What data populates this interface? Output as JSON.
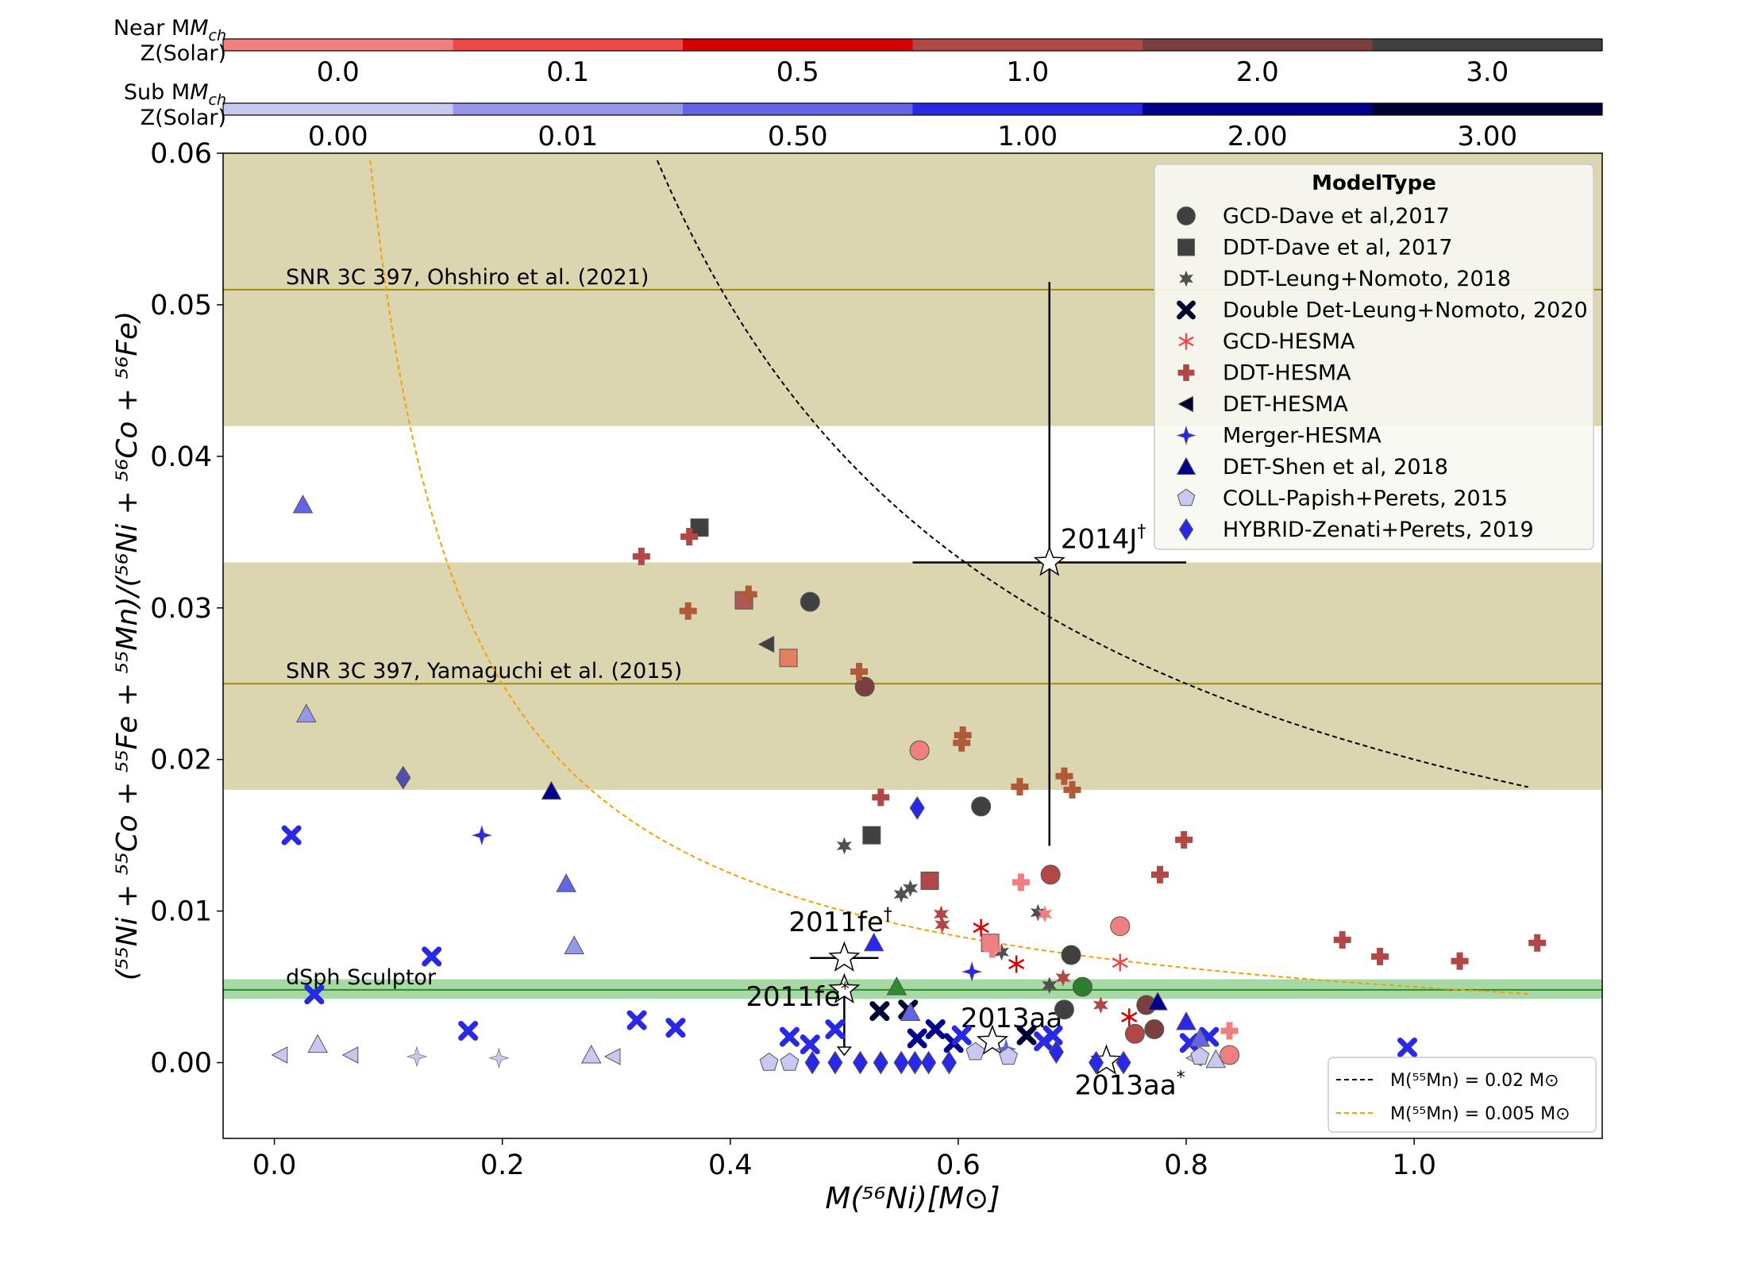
{
  "chart_data": {
    "type": "scatter",
    "xlabel": "M(⁵⁶Ni)[M⊙]",
    "ylabel": "(⁵⁵Ni + ⁵⁵Co + ⁵⁵Fe + ⁵⁵Mn)/(⁵⁶Ni + ⁵⁶Co + ⁵⁶Fe)",
    "xlim": [
      -0.045,
      1.165
    ],
    "ylim": [
      -0.005,
      0.06
    ],
    "xticks": [
      "0.0",
      "0.2",
      "0.4",
      "0.6",
      "0.8",
      "1.0"
    ],
    "xtick_values": [
      0.0,
      0.2,
      0.4,
      0.6,
      0.8,
      1.0
    ],
    "yticks": [
      "0.00",
      "0.01",
      "0.02",
      "0.03",
      "0.04",
      "0.05",
      "0.06"
    ],
    "ytick_values": [
      0.0,
      0.01,
      0.02,
      0.03,
      0.04,
      0.05,
      0.06
    ],
    "colorbars": [
      {
        "title_line1": "Near M",
        "title_sub": "ch",
        "title_line2": "Z(Solar)",
        "labels": [
          "0.0",
          "0.1",
          "0.5",
          "1.0",
          "2.0",
          "3.0"
        ],
        "colors": [
          "#f08080",
          "#ef4848",
          "#d70000",
          "#b04848",
          "#7a4040",
          "#404040"
        ]
      },
      {
        "title_line1": "Sub M",
        "title_sub": "ch",
        "title_line2": "Z(Solar)",
        "labels": [
          "0.00",
          "0.01",
          "0.50",
          "1.00",
          "2.00",
          "3.00"
        ],
        "colors": [
          "#c8c8f0",
          "#9696ea",
          "#6464e6",
          "#2828e6",
          "#00008c",
          "#000032"
        ]
      }
    ],
    "bands": [
      {
        "y0": 0.042,
        "y1": 0.06,
        "line": 0.051,
        "label": "SNR 3C 397, Ohshiro et al. (2021)",
        "color": "#dcd6b0",
        "line_color": "#a08a10"
      },
      {
        "y0": 0.018,
        "y1": 0.033,
        "line": 0.025,
        "label": "SNR 3C 397, Yamaguchi et al. (2015)",
        "color": "#dcd6b0",
        "line_color": "#a08a10"
      },
      {
        "y0": 0.0042,
        "y1": 0.0055,
        "line": 0.0048,
        "label": "dSph Sculptor",
        "color": "#a6d9a6",
        "line_color": "#2e8b2e"
      }
    ],
    "curves": [
      {
        "name": "M(⁵⁵Mn) = 0.02 M⊙",
        "mn": 0.02,
        "x_from": 0.336,
        "x_to": 1.1,
        "color": "#000000"
      },
      {
        "name": "M(⁵⁵Mn) = 0.005 M⊙",
        "mn": 0.005,
        "x_from": 0.084,
        "x_to": 1.1,
        "color": "#f5a000"
      }
    ],
    "legend_title": "ModelType",
    "legend": [
      {
        "label": "GCD-Dave et al,2017",
        "marker": "circle"
      },
      {
        "label": "DDT-Dave et al, 2017",
        "marker": "square"
      },
      {
        "label": "DDT-Leung+Nomoto, 2018",
        "marker": "star6"
      },
      {
        "label": "Double Det-Leung+Nomoto, 2020",
        "marker": "xthick"
      },
      {
        "label": "GCD-HESMA",
        "marker": "asterisk"
      },
      {
        "label": "DDT-HESMA",
        "marker": "plus"
      },
      {
        "label": "DET-HESMA",
        "marker": "triangle-left"
      },
      {
        "label": "Merger-HESMA",
        "marker": "star4"
      },
      {
        "label": "DET-Shen et al, 2018",
        "marker": "triangle"
      },
      {
        "label": "COLL-Papish+Perets, 2015",
        "marker": "pentagon"
      },
      {
        "label": "HYBRID-Zenati+Perets, 2019",
        "marker": "diamond"
      }
    ],
    "curve_legend": [
      "M(⁵⁵Mn) = 0.02 M⊙",
      "M(⁵⁵Mn) = 0.005 M⊙"
    ],
    "observations": [
      {
        "label": "2014J",
        "sup": "†",
        "x": 0.68,
        "y": 0.033,
        "xerr": 0.12,
        "yerr": [
          0.0187,
          0.0185
        ]
      },
      {
        "label": "2011fe",
        "sup": "†",
        "x": 0.5,
        "y": 0.0069,
        "xerr": 0.03,
        "yerr": [
          0,
          0
        ]
      },
      {
        "label": "2011fe",
        "sup": "*",
        "x": 0.5,
        "y": 0.0048,
        "xerr": 0,
        "yerr": [
          0.0043,
          0
        ],
        "arrow": "down"
      },
      {
        "label": "2013aa",
        "sup": "†",
        "x": 0.63,
        "y": 0.0014,
        "xerr": 0,
        "yerr": [
          0,
          0
        ]
      },
      {
        "label": "2013aa",
        "sup": "*",
        "x": 0.73,
        "y": 0.0001,
        "xerr": 0,
        "yerr": [
          0,
          0
        ]
      }
    ],
    "points": [
      {
        "m": "circle",
        "c": "#404040",
        "x": 0.47,
        "y": 0.0304
      },
      {
        "m": "circle",
        "c": "#7a4040",
        "x": 0.518,
        "y": 0.0248
      },
      {
        "m": "circle",
        "c": "#f08080",
        "x": 0.566,
        "y": 0.0206
      },
      {
        "m": "circle",
        "c": "#404040",
        "x": 0.62,
        "y": 0.0169
      },
      {
        "m": "circle",
        "c": "#b04848",
        "x": 0.681,
        "y": 0.0124
      },
      {
        "m": "circle",
        "c": "#f08080",
        "x": 0.742,
        "y": 0.009
      },
      {
        "m": "circle",
        "c": "#404040",
        "x": 0.699,
        "y": 0.0071
      },
      {
        "m": "circle",
        "c": "#2e7d2e",
        "x": 0.709,
        "y": 0.005
      },
      {
        "m": "circle",
        "c": "#404040",
        "x": 0.693,
        "y": 0.0035
      },
      {
        "m": "circle",
        "c": "#7a4040",
        "x": 0.765,
        "y": 0.0038
      },
      {
        "m": "circle",
        "c": "#7a4040",
        "x": 0.772,
        "y": 0.0022
      },
      {
        "m": "circle",
        "c": "#b04848",
        "x": 0.755,
        "y": 0.0019
      },
      {
        "m": "circle",
        "c": "#f08080",
        "x": 0.838,
        "y": 0.0005
      },
      {
        "m": "square",
        "c": "#404040",
        "x": 0.373,
        "y": 0.0353
      },
      {
        "m": "square",
        "c": "#b05858",
        "x": 0.412,
        "y": 0.0305
      },
      {
        "m": "square",
        "c": "#e08060",
        "x": 0.451,
        "y": 0.0267
      },
      {
        "m": "square",
        "c": "#404040",
        "x": 0.524,
        "y": 0.015
      },
      {
        "m": "square",
        "c": "#b04848",
        "x": 0.575,
        "y": 0.012
      },
      {
        "m": "square",
        "c": "#f08080",
        "x": 0.628,
        "y": 0.0079
      },
      {
        "m": "star6",
        "c": "#505050",
        "x": 0.5,
        "y": 0.0143
      },
      {
        "m": "star6",
        "c": "#505050",
        "x": 0.55,
        "y": 0.0111
      },
      {
        "m": "star6",
        "c": "#505050",
        "x": 0.558,
        "y": 0.0115
      },
      {
        "m": "star6",
        "c": "#b04848",
        "x": 0.585,
        "y": 0.0098
      },
      {
        "m": "star6",
        "c": "#b04848",
        "x": 0.586,
        "y": 0.0091
      },
      {
        "m": "star6",
        "c": "#505050",
        "x": 0.638,
        "y": 0.0073
      },
      {
        "m": "star6",
        "c": "#505050",
        "x": 0.67,
        "y": 0.0099
      },
      {
        "m": "star6",
        "c": "#505050",
        "x": 0.68,
        "y": 0.0051
      },
      {
        "m": "star6",
        "c": "#b04848",
        "x": 0.692,
        "y": 0.0056
      },
      {
        "m": "star6",
        "c": "#f08080",
        "x": 0.676,
        "y": 0.0098
      },
      {
        "m": "star6",
        "c": "#b04848",
        "x": 0.725,
        "y": 0.0038
      },
      {
        "m": "xthick",
        "c": "#2828e6",
        "x": 0.015,
        "y": 0.015
      },
      {
        "m": "xthick",
        "c": "#2828e6",
        "x": 0.035,
        "y": 0.0045
      },
      {
        "m": "xthick",
        "c": "#2828e6",
        "x": 0.138,
        "y": 0.007
      },
      {
        "m": "xthick",
        "c": "#2828e6",
        "x": 0.17,
        "y": 0.0021
      },
      {
        "m": "xthick",
        "c": "#2828e6",
        "x": 0.318,
        "y": 0.0028
      },
      {
        "m": "xthick",
        "c": "#2828e6",
        "x": 0.352,
        "y": 0.0023
      },
      {
        "m": "xthick",
        "c": "#2828e6",
        "x": 0.452,
        "y": 0.0017
      },
      {
        "m": "xthick",
        "c": "#2828e6",
        "x": 0.47,
        "y": 0.0012
      },
      {
        "m": "xthick",
        "c": "#2828e6",
        "x": 0.492,
        "y": 0.0022
      },
      {
        "m": "xthick",
        "c": "#000032",
        "x": 0.531,
        "y": 0.0034
      },
      {
        "m": "xthick",
        "c": "#000032",
        "x": 0.556,
        "y": 0.0035
      },
      {
        "m": "xthick",
        "c": "#00008c",
        "x": 0.564,
        "y": 0.0016
      },
      {
        "m": "xthick",
        "c": "#00008c",
        "x": 0.58,
        "y": 0.0022
      },
      {
        "m": "xthick",
        "c": "#00008c",
        "x": 0.596,
        "y": 0.0013
      },
      {
        "m": "xthick",
        "c": "#2828e6",
        "x": 0.603,
        "y": 0.0018
      },
      {
        "m": "xthick",
        "c": "#000032",
        "x": 0.66,
        "y": 0.0018
      },
      {
        "m": "xthick",
        "c": "#2828e6",
        "x": 0.675,
        "y": 0.0014
      },
      {
        "m": "xthick",
        "c": "#2828e6",
        "x": 0.683,
        "y": 0.0018
      },
      {
        "m": "xthick",
        "c": "#2828e6",
        "x": 0.803,
        "y": 0.0013
      },
      {
        "m": "xthick",
        "c": "#2828e6",
        "x": 0.82,
        "y": 0.0017
      },
      {
        "m": "xthick",
        "c": "#2828e6",
        "x": 0.994,
        "y": 0.001
      },
      {
        "m": "asterisk",
        "c": "#d70000",
        "x": 0.62,
        "y": 0.0089
      },
      {
        "m": "asterisk",
        "c": "#d70000",
        "x": 0.651,
        "y": 0.0065
      },
      {
        "m": "asterisk",
        "c": "#ef4848",
        "x": 0.742,
        "y": 0.0066
      },
      {
        "m": "asterisk",
        "c": "#d70000",
        "x": 0.75,
        "y": 0.003
      },
      {
        "m": "plus",
        "c": "#b04848",
        "x": 0.322,
        "y": 0.0334
      },
      {
        "m": "plus",
        "c": "#b04848",
        "x": 0.364,
        "y": 0.0347
      },
      {
        "m": "plus",
        "c": "#b05a3a",
        "x": 0.363,
        "y": 0.0298
      },
      {
        "m": "plus",
        "c": "#b05a3a",
        "x": 0.416,
        "y": 0.0309
      },
      {
        "m": "plus",
        "c": "#b05a3a",
        "x": 0.513,
        "y": 0.0258
      },
      {
        "m": "plus",
        "c": "#b05a3a",
        "x": 0.604,
        "y": 0.0216
      },
      {
        "m": "plus",
        "c": "#b05a3a",
        "x": 0.603,
        "y": 0.0211
      },
      {
        "m": "plus",
        "c": "#b04848",
        "x": 0.532,
        "y": 0.0175
      },
      {
        "m": "plus",
        "c": "#b05a3a",
        "x": 0.654,
        "y": 0.0182
      },
      {
        "m": "plus",
        "c": "#b05a3a",
        "x": 0.693,
        "y": 0.0189
      },
      {
        "m": "plus",
        "c": "#b05a3a",
        "x": 0.7,
        "y": 0.018
      },
      {
        "m": "plus",
        "c": "#b04848",
        "x": 0.798,
        "y": 0.0147
      },
      {
        "m": "plus",
        "c": "#b04848",
        "x": 0.777,
        "y": 0.0124
      },
      {
        "m": "plus",
        "c": "#f08080",
        "x": 0.655,
        "y": 0.0119
      },
      {
        "m": "plus",
        "c": "#f08080",
        "x": 0.63,
        "y": 0.0075
      },
      {
        "m": "plus",
        "c": "#b04848",
        "x": 0.937,
        "y": 0.0081
      },
      {
        "m": "plus",
        "c": "#b04848",
        "x": 0.97,
        "y": 0.007
      },
      {
        "m": "plus",
        "c": "#b04848",
        "x": 1.04,
        "y": 0.0067
      },
      {
        "m": "plus",
        "c": "#b04848",
        "x": 1.108,
        "y": 0.0079
      },
      {
        "m": "plus",
        "c": "#f08080",
        "x": 0.838,
        "y": 0.0021
      },
      {
        "m": "triangle-left",
        "c": "#404040",
        "x": 0.432,
        "y": 0.0276
      },
      {
        "m": "triangle-left",
        "c": "#c8c8f0",
        "x": 0.005,
        "y": 0.0005
      },
      {
        "m": "triangle-left",
        "c": "#c8c8f0",
        "x": 0.067,
        "y": 0.0005
      },
      {
        "m": "triangle-left",
        "c": "#c8c8f0",
        "x": 0.297,
        "y": 0.0004
      },
      {
        "m": "triangle-left",
        "c": "#c8c8f0",
        "x": 0.807,
        "y": 0.0003
      },
      {
        "m": "star4",
        "c": "#2828e6",
        "x": 0.182,
        "y": 0.015
      },
      {
        "m": "star4",
        "c": "#c8c8f0",
        "x": 0.125,
        "y": 0.0004
      },
      {
        "m": "star4",
        "c": "#c8c8f0",
        "x": 0.197,
        "y": 0.0003
      },
      {
        "m": "star4",
        "c": "#2828e6",
        "x": 0.612,
        "y": 0.006
      },
      {
        "m": "star4",
        "c": "#6464e6",
        "x": 0.642,
        "y": 0.0009
      },
      {
        "m": "triangle",
        "c": "#6464e6",
        "x": 0.025,
        "y": 0.0368
      },
      {
        "m": "triangle",
        "c": "#9696ea",
        "x": 0.028,
        "y": 0.023
      },
      {
        "m": "triangle",
        "c": "#00008c",
        "x": 0.243,
        "y": 0.0179
      },
      {
        "m": "triangle",
        "c": "#6464e6",
        "x": 0.256,
        "y": 0.0118
      },
      {
        "m": "triangle",
        "c": "#9696ea",
        "x": 0.263,
        "y": 0.0077
      },
      {
        "m": "triangle",
        "c": "#2828e6",
        "x": 0.526,
        "y": 0.0079
      },
      {
        "m": "triangle",
        "c": "#2e8b2e",
        "x": 0.546,
        "y": 0.005
      },
      {
        "m": "triangle",
        "c": "#6464e6",
        "x": 0.558,
        "y": 0.0033
      },
      {
        "m": "triangle",
        "c": "#00008c",
        "x": 0.775,
        "y": 0.004
      },
      {
        "m": "triangle",
        "c": "#2828e6",
        "x": 0.8,
        "y": 0.0027
      },
      {
        "m": "triangle",
        "c": "#6464e6",
        "x": 0.812,
        "y": 0.0016
      },
      {
        "m": "triangle",
        "c": "#c8c8f0",
        "x": 0.038,
        "y": 0.0012
      },
      {
        "m": "triangle",
        "c": "#c8c8f0",
        "x": 0.278,
        "y": 0.0005
      },
      {
        "m": "triangle",
        "c": "#c8c8f0",
        "x": 0.826,
        "y": 0.0002
      },
      {
        "m": "pentagon",
        "c": "#c8c8f0",
        "x": 0.434,
        "y": 0.0
      },
      {
        "m": "pentagon",
        "c": "#c8c8f0",
        "x": 0.452,
        "y": 0.0
      },
      {
        "m": "pentagon",
        "c": "#c8c8f0",
        "x": 0.615,
        "y": 0.0007
      },
      {
        "m": "pentagon",
        "c": "#c8c8f0",
        "x": 0.644,
        "y": 0.0004
      },
      {
        "m": "pentagon",
        "c": "#c8c8f0",
        "x": 0.812,
        "y": 0.0004
      },
      {
        "m": "diamond",
        "c": "#5050b0",
        "x": 0.113,
        "y": 0.0188
      },
      {
        "m": "diamond",
        "c": "#2828e6",
        "x": 0.564,
        "y": 0.0168
      },
      {
        "m": "diamond",
        "c": "#2828e6",
        "x": 0.472,
        "y": 0.0
      },
      {
        "m": "diamond",
        "c": "#2828e6",
        "x": 0.492,
        "y": 0.0
      },
      {
        "m": "diamond",
        "c": "#2828e6",
        "x": 0.514,
        "y": 0.0
      },
      {
        "m": "diamond",
        "c": "#2828e6",
        "x": 0.532,
        "y": 0.0
      },
      {
        "m": "diamond",
        "c": "#2828e6",
        "x": 0.55,
        "y": 0.0
      },
      {
        "m": "diamond",
        "c": "#2828e6",
        "x": 0.562,
        "y": 0.0
      },
      {
        "m": "diamond",
        "c": "#2828e6",
        "x": 0.574,
        "y": 0.0
      },
      {
        "m": "diamond",
        "c": "#2828e6",
        "x": 0.592,
        "y": 0.0
      },
      {
        "m": "diamond",
        "c": "#2828e6",
        "x": 0.686,
        "y": 0.0007
      },
      {
        "m": "diamond",
        "c": "#2828e6",
        "x": 0.721,
        "y": 0.0
      },
      {
        "m": "diamond",
        "c": "#2828e6",
        "x": 0.745,
        "y": 0.0
      }
    ]
  }
}
